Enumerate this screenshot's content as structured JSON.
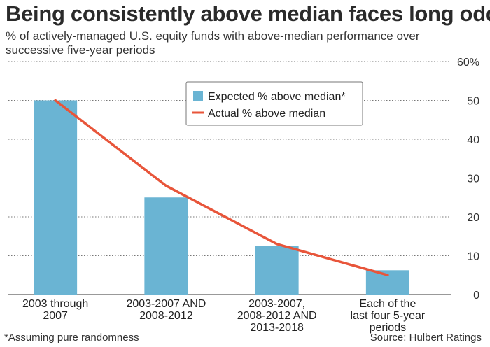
{
  "title": "Being consistently above median faces long odds",
  "subtitle": "% of actively-managed U.S. equity funds with above-median performance over successive five-year periods",
  "footnote": "*Assuming pure randomness",
  "source": "Source: Hulbert Ratings",
  "colors": {
    "bar": "#6ab4d3",
    "line": "#e8553a",
    "grid": "#777777"
  },
  "chart_data": {
    "type": "bar",
    "categories": [
      [
        "2003 through",
        "2007"
      ],
      [
        "2003-2007 AND",
        "2008-2012"
      ],
      [
        "2003-2007,",
        "2008-2012 AND",
        "2013-2018"
      ],
      [
        "Each of the",
        "last four 5-year",
        "periods"
      ]
    ],
    "series": [
      {
        "name": "Expected % above median*",
        "type": "bar",
        "values": [
          50,
          25,
          12.5,
          6.25
        ]
      },
      {
        "name": "Actual % above median",
        "type": "line",
        "values": [
          50,
          28,
          13,
          5
        ]
      }
    ],
    "yticks": [
      "0",
      "10",
      "20",
      "30",
      "40",
      "50",
      "60%"
    ],
    "ylim": [
      0,
      60
    ],
    "grid": true,
    "legend_position": "top-center",
    "y_axis_side": "right"
  }
}
